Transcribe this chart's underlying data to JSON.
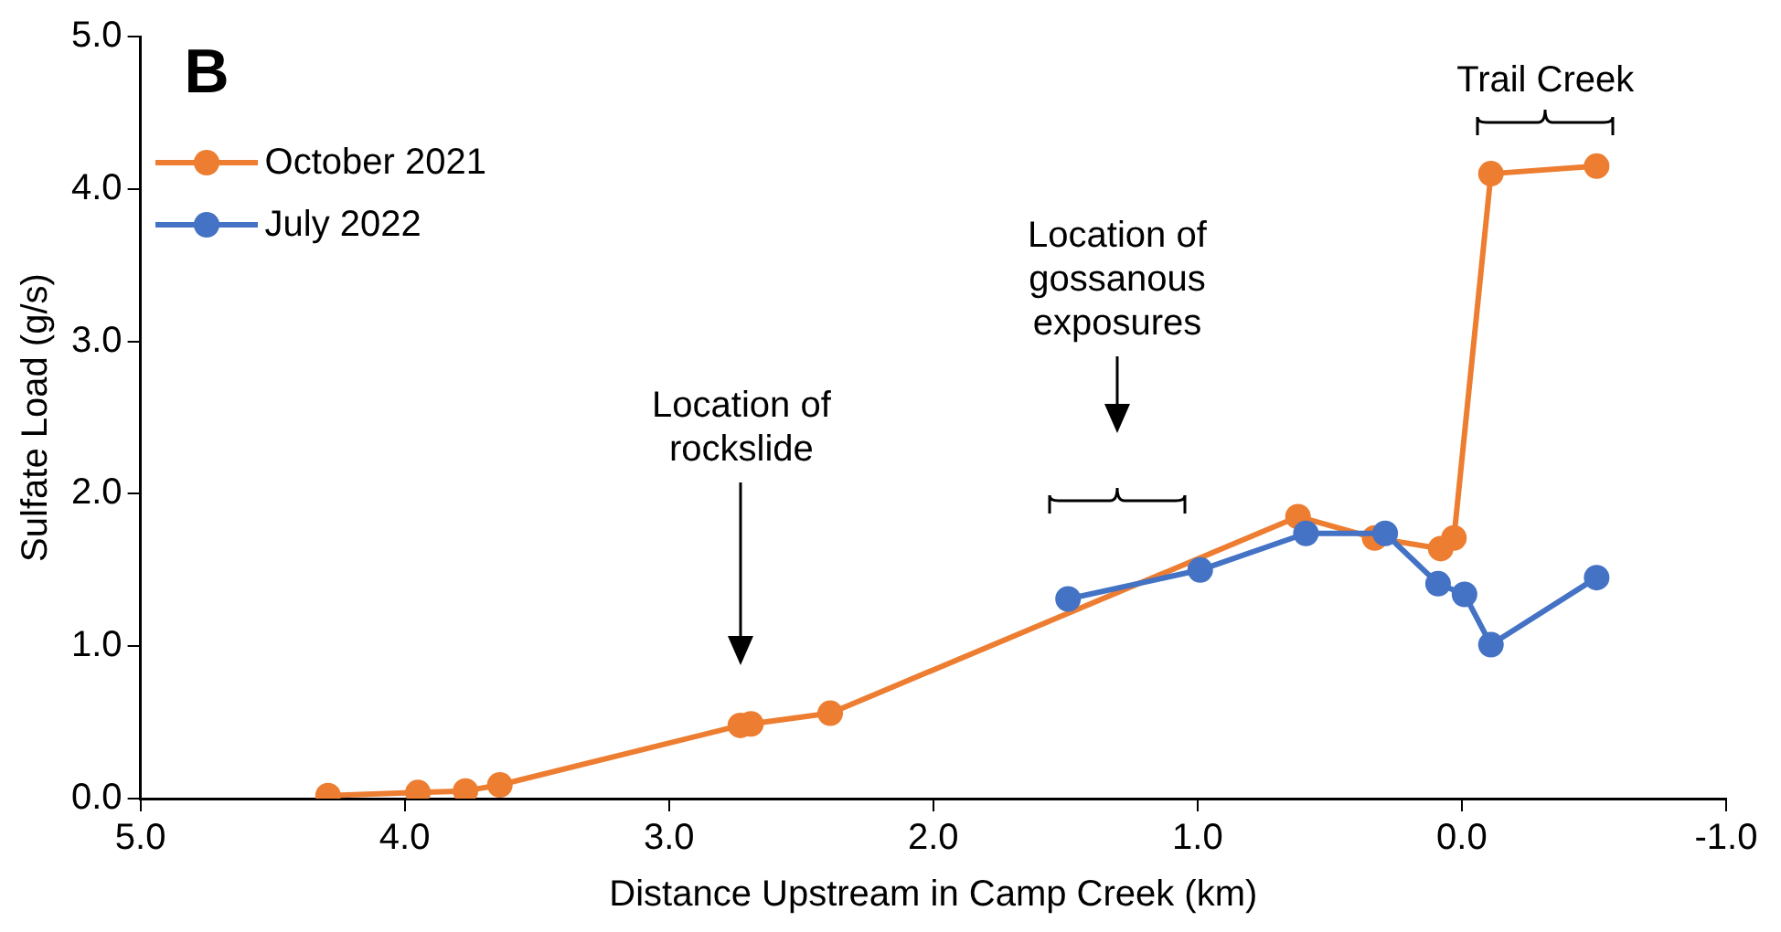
{
  "chart_data": {
    "type": "line",
    "title": "B",
    "xlabel": "Distance Upstream in Camp Creek (km)",
    "ylabel": "Sulfate Load (g/s)",
    "xlim": [
      5,
      -1
    ],
    "xticks": [
      {
        "value": 5,
        "label": "5.0"
      },
      {
        "value": 4,
        "label": "4.0"
      },
      {
        "value": 3,
        "label": "3.0"
      },
      {
        "value": 2,
        "label": "2.0"
      },
      {
        "value": 1,
        "label": "1.0"
      },
      {
        "value": 0,
        "label": "0.0"
      },
      {
        "value": -1,
        "label": "-1.0"
      }
    ],
    "ylim": [
      0,
      5
    ],
    "yticks": [
      {
        "value": 0,
        "label": "0.0"
      },
      {
        "value": 1,
        "label": "1.0"
      },
      {
        "value": 2,
        "label": "2.0"
      },
      {
        "value": 3,
        "label": "3.0"
      },
      {
        "value": 4,
        "label": "4.0"
      },
      {
        "value": 5,
        "label": "5.0"
      }
    ],
    "series": [
      {
        "name": "October 2021",
        "color": "#ed7d31",
        "x": [
          4.29,
          3.95,
          3.77,
          3.64,
          2.73,
          2.69,
          2.39,
          0.62,
          0.33,
          0.08,
          0.03,
          -0.11,
          -0.51
        ],
        "values": [
          0.02,
          0.04,
          0.05,
          0.09,
          0.48,
          0.49,
          0.56,
          1.85,
          1.71,
          1.64,
          1.71,
          4.1,
          4.15
        ]
      },
      {
        "name": "July 2022",
        "color": "#4472c4",
        "x": [
          1.49,
          0.99,
          0.59,
          0.29,
          0.09,
          -0.01,
          -0.11,
          -0.51
        ],
        "values": [
          1.31,
          1.5,
          1.74,
          1.74,
          1.41,
          1.34,
          1.01,
          1.45
        ]
      }
    ],
    "annotations": [
      "Location of rockslide",
      "Location of gossanous exposures",
      "Trail Creek"
    ],
    "legend": "top left",
    "grid": false,
    "marker": "circle",
    "line_style": "solid"
  }
}
